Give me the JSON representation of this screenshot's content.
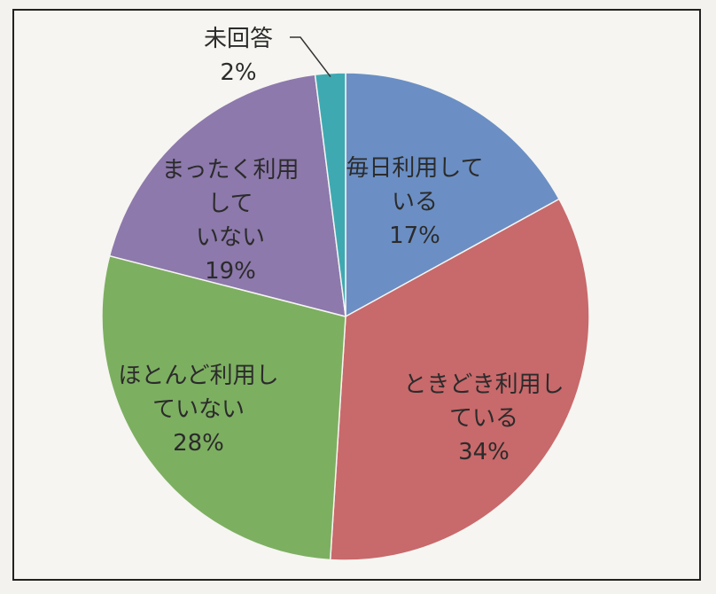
{
  "chart_data": {
    "type": "pie",
    "title": "",
    "start_angle_deg": 0,
    "direction": "clockwise",
    "slices": [
      {
        "name": "毎日利用している",
        "label_lines": [
          "毎日利用して",
          "いる"
        ],
        "value": 17,
        "value_label": "17%",
        "color": "#6b8fc4"
      },
      {
        "name": "ときどき利用している",
        "label_lines": [
          "ときどき利用し",
          "ている"
        ],
        "value": 34,
        "value_label": "34%",
        "color": "#c8696b"
      },
      {
        "name": "ほとんど利用していない",
        "label_lines": [
          "ほとんど利用し",
          "ていない"
        ],
        "value": 28,
        "value_label": "28%",
        "color": "#7daf61"
      },
      {
        "name": "まったく利用していない",
        "label_lines": [
          "まったく利用",
          "して",
          "いない"
        ],
        "value": 19,
        "value_label": "19%",
        "color": "#8d79ac"
      },
      {
        "name": "未回答",
        "label_lines": [
          "未回答"
        ],
        "value": 2,
        "value_label": "2%",
        "color": "#3fa9b2"
      }
    ],
    "legend": "none",
    "label_position": "inside, except 未回答 outside with leader line"
  }
}
